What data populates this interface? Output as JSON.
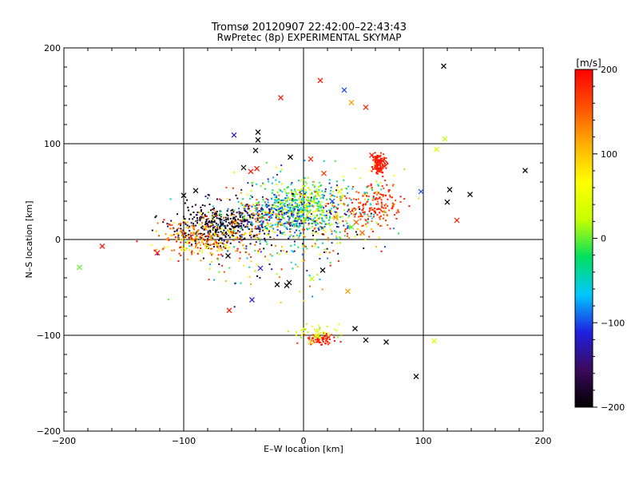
{
  "chart_data": {
    "type": "scatter",
    "title_line1": "Tromsø 20120907 22:42:00–22:43:43",
    "title_line2": "RwPretec (8p) EXPERIMENTAL SKYMAP",
    "xlabel": "E–W location [km]",
    "ylabel": "N–S location [km]",
    "xlim": [
      -200,
      200
    ],
    "ylim": [
      -200,
      200
    ],
    "xticks": [
      -200,
      -100,
      0,
      100,
      200
    ],
    "yticks": [
      -200,
      -100,
      0,
      100,
      200
    ],
    "grid": true,
    "colorbar": {
      "label": "[m/s]",
      "range": [
        -200,
        200
      ],
      "ticks": [
        200,
        100,
        0,
        -100,
        -200
      ],
      "colormap": [
        "#000000",
        "#3a0a5a",
        "#2020e0",
        "#00c8ff",
        "#00e060",
        "#c8ff00",
        "#ffff00",
        "#ffb000",
        "#ff5000",
        "#ff0000"
      ]
    },
    "markers": {
      "point": "dot",
      "cross": "x-mark"
    },
    "crosses": [
      {
        "x": 117,
        "y": 181,
        "v": -200
      },
      {
        "x": 14,
        "y": 166,
        "v": 190
      },
      {
        "x": -19,
        "y": 148,
        "v": 190
      },
      {
        "x": 34,
        "y": 156,
        "v": -100
      },
      {
        "x": 40,
        "y": 143,
        "v": 120
      },
      {
        "x": 52,
        "y": 138,
        "v": 180
      },
      {
        "x": -38,
        "y": 112,
        "v": -200
      },
      {
        "x": -38,
        "y": 104,
        "v": -200
      },
      {
        "x": -58,
        "y": 109,
        "v": -120
      },
      {
        "x": 118,
        "y": 105,
        "v": 20
      },
      {
        "x": 111,
        "y": 94,
        "v": 40
      },
      {
        "x": -40,
        "y": 93,
        "v": -200
      },
      {
        "x": -11,
        "y": 86,
        "v": -200
      },
      {
        "x": 6,
        "y": 84,
        "v": 180
      },
      {
        "x": 185,
        "y": 72,
        "v": -200
      },
      {
        "x": -50,
        "y": 75,
        "v": -200
      },
      {
        "x": -44,
        "y": 71,
        "v": 190
      },
      {
        "x": -39,
        "y": 74,
        "v": 190
      },
      {
        "x": 17,
        "y": 69,
        "v": 170
      },
      {
        "x": 98,
        "y": 50,
        "v": -100
      },
      {
        "x": 122,
        "y": 52,
        "v": -200
      },
      {
        "x": 139,
        "y": 47,
        "v": -200
      },
      {
        "x": 120,
        "y": 39,
        "v": -200
      },
      {
        "x": -100,
        "y": 46,
        "v": -200
      },
      {
        "x": -90,
        "y": 51,
        "v": -200
      },
      {
        "x": 128,
        "y": 20,
        "v": 190
      },
      {
        "x": 44,
        "y": 18,
        "v": 150
      },
      {
        "x": 40,
        "y": 13,
        "v": 0
      },
      {
        "x": 49,
        "y": 7,
        "v": 150
      },
      {
        "x": -168,
        "y": -7,
        "v": 190
      },
      {
        "x": -122,
        "y": -14,
        "v": 190
      },
      {
        "x": -187,
        "y": -29,
        "v": 0
      },
      {
        "x": -63,
        "y": -17,
        "v": -200
      },
      {
        "x": -62,
        "y": -74,
        "v": 190
      },
      {
        "x": -43,
        "y": -63,
        "v": -120
      },
      {
        "x": -36,
        "y": -30,
        "v": -120
      },
      {
        "x": -22,
        "y": -47,
        "v": -200
      },
      {
        "x": -14,
        "y": -48,
        "v": -200
      },
      {
        "x": -12,
        "y": -45,
        "v": -200
      },
      {
        "x": 7,
        "y": -41,
        "v": 20
      },
      {
        "x": 16,
        "y": -32,
        "v": -200
      },
      {
        "x": 37,
        "y": -54,
        "v": 120
      },
      {
        "x": 43,
        "y": -93,
        "v": -200
      },
      {
        "x": 52,
        "y": -105,
        "v": -200
      },
      {
        "x": 69,
        "y": -107,
        "v": -200
      },
      {
        "x": 109,
        "y": -106,
        "v": 40
      },
      {
        "x": 94,
        "y": -143,
        "v": -200
      },
      {
        "x": 6,
        "y": -107,
        "v": 90
      },
      {
        "x": 12,
        "y": -101,
        "v": 30
      },
      {
        "x": 61,
        "y": 84,
        "v": 190
      },
      {
        "x": 66,
        "y": 82,
        "v": 190
      },
      {
        "x": 63,
        "y": 74,
        "v": 190
      },
      {
        "x": 57,
        "y": 88,
        "v": 190
      },
      {
        "x": 27,
        "y": 23,
        "v": 120
      },
      {
        "x": 30,
        "y": 50,
        "v": 40
      },
      {
        "x": 24,
        "y": 40,
        "v": -100
      }
    ],
    "clusters": [
      {
        "cx": -70,
        "cy": 15,
        "sx": 20,
        "sy": 10,
        "n": 380,
        "vmin": -200,
        "vmax": -170
      },
      {
        "cx": -30,
        "cy": 25,
        "sx": 25,
        "sy": 12,
        "n": 260,
        "vmin": -200,
        "vmax": 200
      },
      {
        "cx": -10,
        "cy": 30,
        "sx": 16,
        "sy": 14,
        "n": 380,
        "vmin": -160,
        "vmax": 40
      },
      {
        "cx": 5,
        "cy": 38,
        "sx": 12,
        "sy": 12,
        "n": 200,
        "vmin": -60,
        "vmax": 60
      },
      {
        "cx": -85,
        "cy": 0,
        "sx": 18,
        "sy": 10,
        "n": 260,
        "vmin": 50,
        "vmax": 200
      },
      {
        "cx": 63,
        "cy": 79,
        "sx": 3,
        "sy": 5,
        "n": 120,
        "vmin": 170,
        "vmax": 200
      },
      {
        "cx": 60,
        "cy": 35,
        "sx": 12,
        "sy": 10,
        "n": 160,
        "vmin": 140,
        "vmax": 200
      },
      {
        "cx": 15,
        "cy": -104,
        "sx": 7,
        "sy": 3,
        "n": 70,
        "vmin": 170,
        "vmax": 200
      },
      {
        "cx": 8,
        "cy": -96,
        "sx": 10,
        "sy": 4,
        "n": 40,
        "vmin": 0,
        "vmax": 80
      },
      {
        "cx": 25,
        "cy": 10,
        "sx": 20,
        "sy": 15,
        "n": 140,
        "vmin": -200,
        "vmax": 200
      },
      {
        "cx": -40,
        "cy": 0,
        "sx": 35,
        "sy": 30,
        "n": 160,
        "vmin": -200,
        "vmax": 200
      },
      {
        "cx": 40,
        "cy": 45,
        "sx": 20,
        "sy": 15,
        "n": 90,
        "vmin": -100,
        "vmax": 200
      }
    ]
  }
}
